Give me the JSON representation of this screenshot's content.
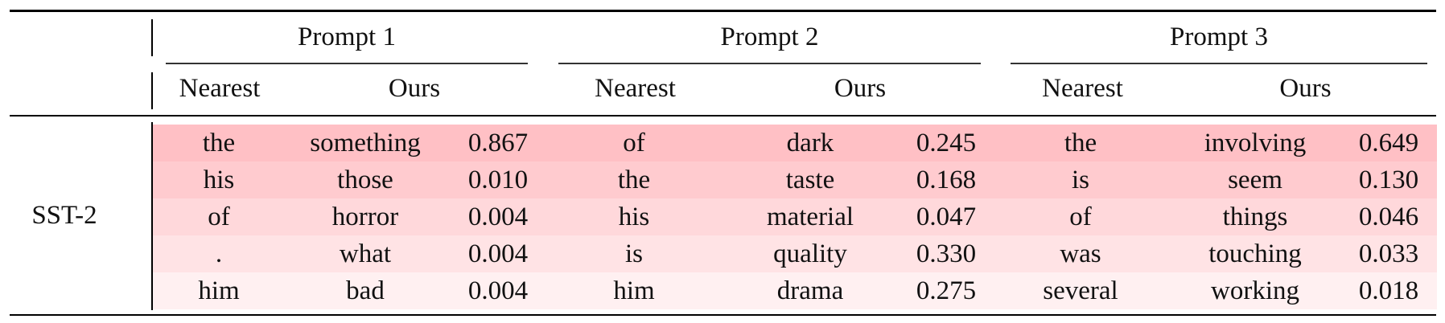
{
  "table": {
    "dataset": "SST-2",
    "prompts": [
      "Prompt 1",
      "Prompt 2",
      "Prompt 3"
    ],
    "subheaders": [
      "Nearest",
      "Ours"
    ],
    "row_colors": [
      "#ffc0c5",
      "#ffcbcf",
      "#ffd8db",
      "#ffe3e5",
      "#fff0f1"
    ],
    "rows": [
      [
        "the",
        "something",
        "0.867",
        "of",
        "dark",
        "0.245",
        "the",
        "involving",
        "0.649"
      ],
      [
        "his",
        "those",
        "0.010",
        "the",
        "taste",
        "0.168",
        "is",
        "seem",
        "0.130"
      ],
      [
        "of",
        "horror",
        "0.004",
        "his",
        "material",
        "0.047",
        "of",
        "things",
        "0.046"
      ],
      [
        ".",
        "what",
        "0.004",
        "is",
        "quality",
        "0.330",
        "was",
        "touching",
        "0.033"
      ],
      [
        "him",
        "bad",
        "0.004",
        "him",
        "drama",
        "0.275",
        "several",
        "working",
        "0.018"
      ]
    ]
  }
}
